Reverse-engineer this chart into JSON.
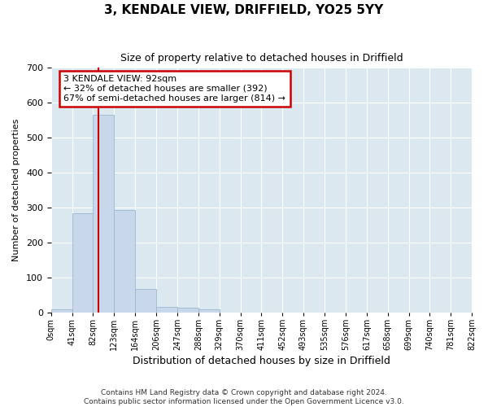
{
  "title": "3, KENDALE VIEW, DRIFFIELD, YO25 5YY",
  "subtitle": "Size of property relative to detached houses in Driffield",
  "xlabel": "Distribution of detached houses by size in Driffield",
  "ylabel": "Number of detached properties",
  "footer_line1": "Contains HM Land Registry data © Crown copyright and database right 2024.",
  "footer_line2": "Contains public sector information licensed under the Open Government Licence v3.0.",
  "annotation_line1": "3 KENDALE VIEW: 92sqm",
  "annotation_line2": "← 32% of detached houses are smaller (392)",
  "annotation_line3": "67% of semi-detached houses are larger (814) →",
  "bar_edges": [
    0,
    41,
    82,
    123,
    164,
    206,
    247,
    288,
    329,
    370,
    411,
    452,
    493,
    535,
    576,
    617,
    658,
    699,
    740,
    781,
    822
  ],
  "bar_heights": [
    8,
    283,
    565,
    292,
    68,
    15,
    13,
    8,
    0,
    0,
    0,
    0,
    0,
    0,
    0,
    0,
    0,
    0,
    0,
    0
  ],
  "bar_color": "#c8d8ea",
  "bar_edgecolor": "#9ab8d0",
  "tick_labels": [
    "0sqm",
    "41sqm",
    "82sqm",
    "123sqm",
    "164sqm",
    "206sqm",
    "247sqm",
    "288sqm",
    "329sqm",
    "370sqm",
    "411sqm",
    "452sqm",
    "493sqm",
    "535sqm",
    "576sqm",
    "617sqm",
    "658sqm",
    "699sqm",
    "740sqm",
    "781sqm",
    "822sqm"
  ],
  "redline_x": 92,
  "redline_color": "#cc0000",
  "ylim": [
    0,
    700
  ],
  "yticks": [
    0,
    100,
    200,
    300,
    400,
    500,
    600,
    700
  ],
  "annotation_box_facecolor": "#ffffff",
  "annotation_box_edgecolor": "#cc0000",
  "plot_bg_color": "#dce8f0",
  "figure_bg_color": "#ffffff",
  "grid_color": "#ffffff",
  "title_fontsize": 11,
  "subtitle_fontsize": 9,
  "xlabel_fontsize": 9,
  "ylabel_fontsize": 8,
  "tick_fontsize": 7,
  "annotation_fontsize": 8,
  "footer_fontsize": 6.5
}
